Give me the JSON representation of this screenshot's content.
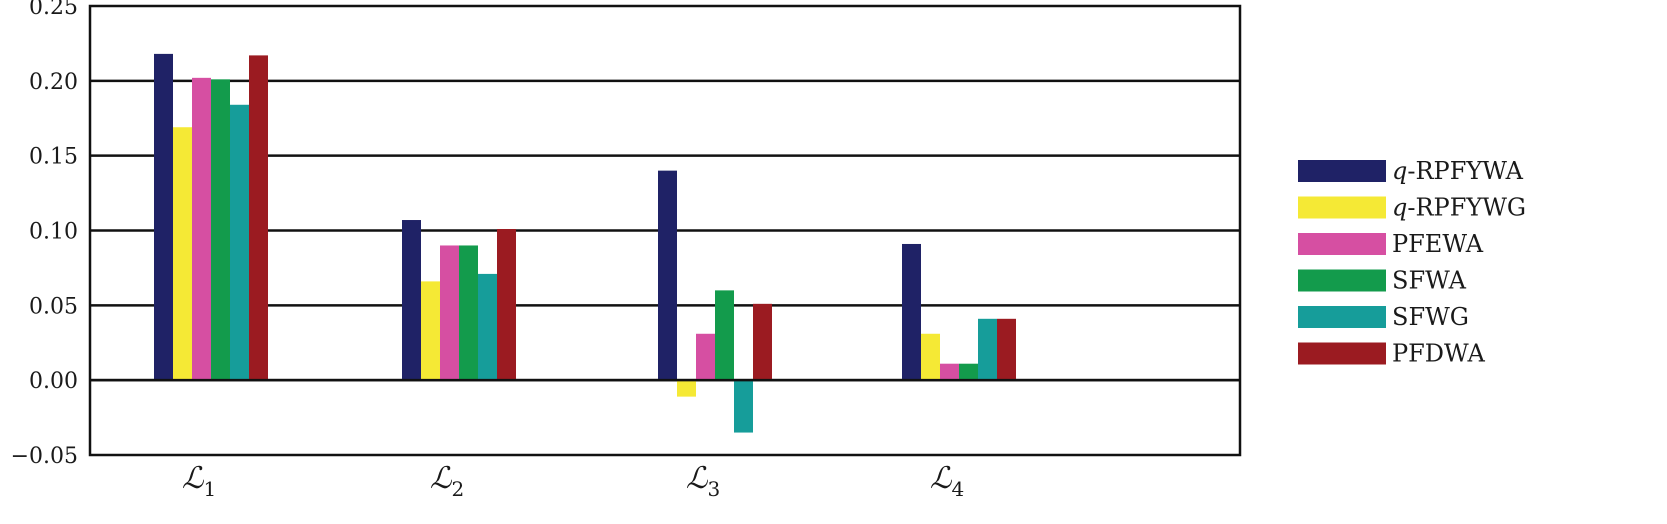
{
  "chart_data": {
    "type": "bar",
    "title": "",
    "xlabel": "",
    "ylabel": "",
    "ylim": [
      -0.05,
      0.25
    ],
    "yticks": [
      "0.25",
      "0.20",
      "0.15",
      "0.10",
      "0.05",
      "0.00",
      "−0.05"
    ],
    "ytick_values": [
      0.25,
      0.2,
      0.15,
      0.1,
      0.05,
      0.0,
      -0.05
    ],
    "grid": "horizontal",
    "legend_position": "right",
    "categories": [
      {
        "label": "ℒ",
        "sub": "1"
      },
      {
        "label": "ℒ",
        "sub": "2"
      },
      {
        "label": "ℒ",
        "sub": "3"
      },
      {
        "label": "ℒ",
        "sub": "4"
      }
    ],
    "series": [
      {
        "name": "q-RPFYWA",
        "name_prefix": "q",
        "name_rest": "-RPFYWA",
        "color": "#1f2266",
        "values": [
          0.218,
          0.107,
          0.14,
          0.091
        ]
      },
      {
        "name": "q-RPFYWG",
        "name_prefix": "q",
        "name_rest": "-RPFYWG",
        "color": "#f5e935",
        "values": [
          0.169,
          0.066,
          -0.011,
          0.031
        ]
      },
      {
        "name": "PFEWA",
        "name_prefix": "",
        "name_rest": "PFEWA",
        "color": "#d64fa2",
        "values": [
          0.202,
          0.09,
          0.031,
          0.011
        ]
      },
      {
        "name": "SFWA",
        "name_prefix": "",
        "name_rest": "SFWA",
        "color": "#139b4c",
        "values": [
          0.201,
          0.09,
          0.06,
          0.011
        ]
      },
      {
        "name": "SFWG",
        "name_prefix": "",
        "name_rest": "SFWG",
        "color": "#169d9a",
        "values": [
          0.184,
          0.071,
          -0.035,
          0.041
        ]
      },
      {
        "name": "PFDWA",
        "name_prefix": "",
        "name_rest": "PFDWA",
        "color": "#9b1b21",
        "values": [
          0.217,
          0.101,
          0.051,
          0.041
        ]
      }
    ]
  }
}
